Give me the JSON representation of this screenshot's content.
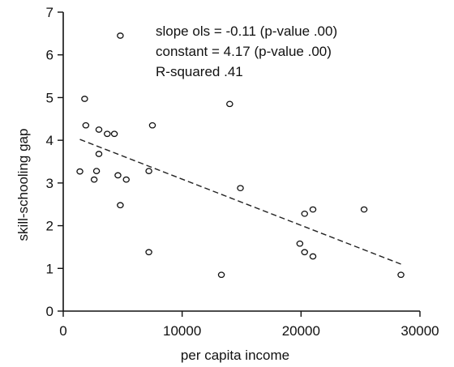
{
  "chart_data": {
    "type": "scatter",
    "xlabel": "per capita income",
    "ylabel": "skill-schooling gap",
    "xlim": [
      0,
      30000
    ],
    "ylim": [
      0,
      7
    ],
    "xticks": [
      0,
      10000,
      20000,
      30000
    ],
    "yticks": [
      0,
      1,
      2,
      3,
      4,
      5,
      6,
      7
    ],
    "xtick_labels": [
      "0",
      "10000",
      "20000",
      "30000"
    ],
    "ytick_labels": [
      "0",
      "1",
      "2",
      "3",
      "4",
      "5",
      "6",
      "7"
    ],
    "grid": false,
    "legend": "none",
    "annotations": [
      "slope ols = -0.11 (p-value .00)",
      "constant = 4.17 (p-value .00)",
      "R-squared .41"
    ],
    "points": [
      {
        "x": 1400,
        "y": 3.27
      },
      {
        "x": 1800,
        "y": 4.97
      },
      {
        "x": 1900,
        "y": 4.35
      },
      {
        "x": 2600,
        "y": 3.08
      },
      {
        "x": 2800,
        "y": 3.28
      },
      {
        "x": 3000,
        "y": 3.68
      },
      {
        "x": 3000,
        "y": 4.25
      },
      {
        "x": 3700,
        "y": 4.15
      },
      {
        "x": 4300,
        "y": 4.15
      },
      {
        "x": 4600,
        "y": 3.18
      },
      {
        "x": 4800,
        "y": 6.45
      },
      {
        "x": 4800,
        "y": 2.48
      },
      {
        "x": 5300,
        "y": 3.08
      },
      {
        "x": 7200,
        "y": 3.28
      },
      {
        "x": 7200,
        "y": 1.38
      },
      {
        "x": 7500,
        "y": 4.35
      },
      {
        "x": 13300,
        "y": 0.85
      },
      {
        "x": 14000,
        "y": 4.85
      },
      {
        "x": 14900,
        "y": 2.88
      },
      {
        "x": 19900,
        "y": 1.58
      },
      {
        "x": 20300,
        "y": 2.28
      },
      {
        "x": 20300,
        "y": 1.38
      },
      {
        "x": 21000,
        "y": 1.28
      },
      {
        "x": 21000,
        "y": 2.38
      },
      {
        "x": 25300,
        "y": 2.38
      },
      {
        "x": 28400,
        "y": 0.85
      }
    ],
    "fit_line": {
      "x": [
        1400,
        28400
      ],
      "y": [
        4.02,
        1.1
      ]
    }
  }
}
